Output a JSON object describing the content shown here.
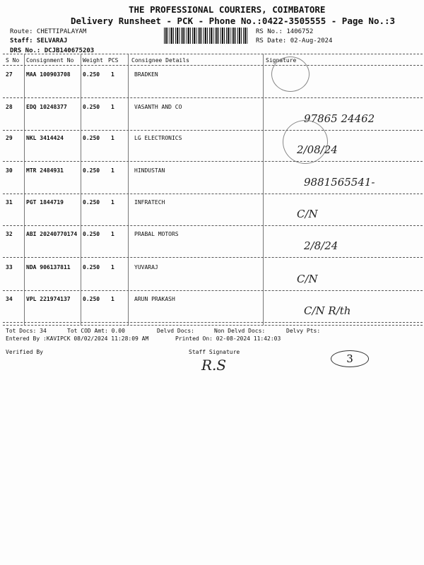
{
  "header": {
    "company": "THE PROFESSIONAL COURIERS, COIMBATORE",
    "subtitle": "Delivery Runsheet - PCK - Phone No.:0422-3505555 - Page No.:3",
    "route": "Route: CHETTIPALAYAM",
    "staff": "Staff: SELVARAJ",
    "drs": "DRS No.: DCJB140675203",
    "rs_no": "RS No.: 1406752",
    "rs_date": "RS Date: 02-Aug-2024"
  },
  "table": {
    "headers": [
      "S No",
      "Consignment No",
      "Weight",
      "PCS",
      "Consignee Details",
      "Signature"
    ],
    "rows": [
      {
        "sno": "27",
        "cn": "MAA 100903708",
        "weight": "0.250",
        "pcs": "1",
        "consignee": "BRADKEN",
        "sig": ""
      },
      {
        "sno": "28",
        "cn": "EDQ 10248377",
        "weight": "0.250",
        "pcs": "1",
        "consignee": "VASANTH AND CO",
        "sig": "97865 24462"
      },
      {
        "sno": "29",
        "cn": "NKL 3414424",
        "weight": "0.250",
        "pcs": "1",
        "consignee": "LG ELECTRONICS",
        "sig": "2/08/24"
      },
      {
        "sno": "30",
        "cn": "MTR 2484931",
        "weight": "0.250",
        "pcs": "1",
        "consignee": "HINDUSTAN",
        "sig": "9881565541-"
      },
      {
        "sno": "31",
        "cn": "PGT 1844719",
        "weight": "0.250",
        "pcs": "1",
        "consignee": "INFRATECH",
        "sig": "C/N"
      },
      {
        "sno": "32",
        "cn": "ABI 20240770174",
        "weight": "0.250",
        "pcs": "1",
        "consignee": "PRABAL MOTORS",
        "sig": "2/8/24"
      },
      {
        "sno": "33",
        "cn": "NDA 906137811",
        "weight": "0.250",
        "pcs": "1",
        "consignee": "YUVARAJ",
        "sig": "C/N"
      },
      {
        "sno": "34",
        "cn": "VPL 221974137",
        "weight": "0.250",
        "pcs": "1",
        "consignee": "ARUN PRAKASH",
        "sig": "C/N  R/th"
      }
    ]
  },
  "footer": {
    "tot_docs": "Tot Docs:  34",
    "tot_cod": "Tot COD Amt:    0.00",
    "delvd": "Delvd Docs:",
    "non_delvd": "Non Delvd Docs:",
    "delvy_pts": "Delvy Pts:",
    "entered": "Entered By :KAVIPCK 08/02/2024 11:28:09 AM",
    "printed": "Printed On: 02-08-2024 11:42:03",
    "verified": "Verified By",
    "staff_sig": "Staff Signature",
    "page_circle": "3"
  }
}
